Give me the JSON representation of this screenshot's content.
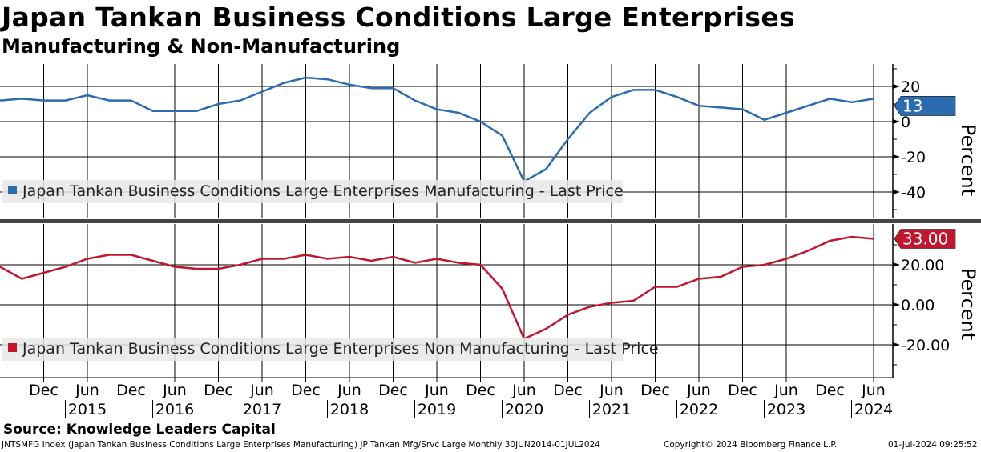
{
  "header": {
    "title": "Japan Tankan Business Conditions Large Enterprises",
    "subtitle": "Manufacturing & Non-Manufacturing"
  },
  "footer": {
    "source": "Source: Knowledge Leaders Capital",
    "ticker": "JNTSMFG Index (Japan Tankan Business Conditions Large Enterprises Manufacturing) JP Tankan Mfg/Srvc Large  Monthly 30JUN2014-01JUL2024",
    "copyright": "Copyright© 2024 Bloomberg Finance L.P.",
    "timestamp": "01-Jul-2024 09:25:52"
  },
  "colors": {
    "mfg": "#2b6cb0",
    "nonmfg": "#c0172f"
  },
  "chart_data": [
    {
      "type": "line",
      "name": "Japan Tankan Business Conditions Large Enterprises Manufacturing - Last Price",
      "ylabel": "Percent",
      "ylim": [
        -50,
        30
      ],
      "yticks": [
        20,
        0,
        -20,
        -40
      ],
      "ytick_labels": [
        "20",
        "0",
        "-20",
        "-40"
      ],
      "last_label": "13",
      "values": [
        12,
        13,
        12,
        12,
        15,
        12,
        12,
        6,
        6,
        6,
        10,
        12,
        17,
        22,
        25,
        24,
        21,
        19,
        19,
        12,
        7,
        5,
        0,
        -8,
        -34,
        -27,
        -10,
        5,
        14,
        18,
        18,
        14,
        9,
        8,
        7,
        1,
        5,
        9,
        13,
        11,
        13
      ]
    },
    {
      "type": "line",
      "name": "Japan Tankan Business Conditions Large Enterprises Non Manufacturing - Last Price",
      "ylabel": "Percent",
      "ylim": [
        -36,
        40
      ],
      "yticks": [
        20,
        0,
        -20
      ],
      "ytick_labels": [
        "20.00",
        "0.00",
        "-20.00"
      ],
      "last_label": "33.00",
      "values": [
        19,
        13,
        16,
        19,
        23,
        25,
        25,
        22,
        19,
        18,
        18,
        20,
        23,
        23,
        25,
        23,
        24,
        22,
        24,
        21,
        23,
        21,
        20,
        8,
        -17,
        -12,
        -5,
        -1,
        1,
        2,
        9,
        9,
        13,
        14,
        19,
        20,
        23,
        27,
        32,
        34,
        33
      ]
    }
  ],
  "x": {
    "start": "Jun 2014",
    "frequency": "quarterly",
    "month_labels": [
      "Dec",
      "Jun",
      "Dec",
      "Jun",
      "Dec",
      "Jun",
      "Dec",
      "Jun",
      "Dec",
      "Jun",
      "Dec",
      "Jun",
      "Dec",
      "Jun",
      "Dec",
      "Jun",
      "Dec",
      "Jun",
      "Dec",
      "Jun"
    ],
    "year_labels": [
      "2015",
      "2016",
      "2017",
      "2018",
      "2019",
      "2020",
      "2021",
      "2022",
      "2023",
      "2024"
    ]
  }
}
